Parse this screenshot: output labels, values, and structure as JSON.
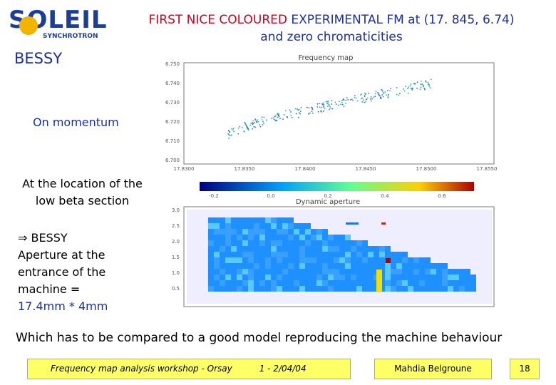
{
  "logo": {
    "name": "SOLEIL",
    "sub": "SYNCHROTRON"
  },
  "header": {
    "title_red": "FIRST NICE COLOURED",
    "title_rest": "EXPERIMENTAL FM at (17. 845, 6.74)",
    "title_line2": "and zero chromaticities",
    "lab": "BESSY"
  },
  "notes": {
    "momentum": "On momentum",
    "location": "At the location of the low beta section",
    "arrow": "⇒",
    "aperture_1": "BESSY",
    "aperture_2": "Aperture at the entrance of the machine =",
    "aperture_3": "17.4mm * 4mm"
  },
  "frequency_map": {
    "title": "Frequency map",
    "yticks": [
      "6.750",
      "6.740",
      "6.730",
      "6.720",
      "6.710",
      "6.700"
    ],
    "xticks": [
      "17.8300",
      "17.8350",
      "17.8400",
      "17.8450",
      "17.8500",
      "17.8550"
    ]
  },
  "colorbar": {
    "ticks": [
      "-0.2",
      "0.0",
      "0.2",
      "0.4",
      "0.6"
    ]
  },
  "dynamic_aperture": {
    "title": "Dynamic aperture",
    "yticks": [
      "3.0",
      "2.5",
      "2.0",
      "1.5",
      "1.0",
      "0.5"
    ]
  },
  "conclusion": "Which has to be compared to a good model reproducing the machine behaviour",
  "footer": {
    "workshop": "Frequency map analysis workshop - Orsay",
    "dates": "1 - 2/04/04",
    "author": "Mahdia Belgroune",
    "page": "18"
  }
}
